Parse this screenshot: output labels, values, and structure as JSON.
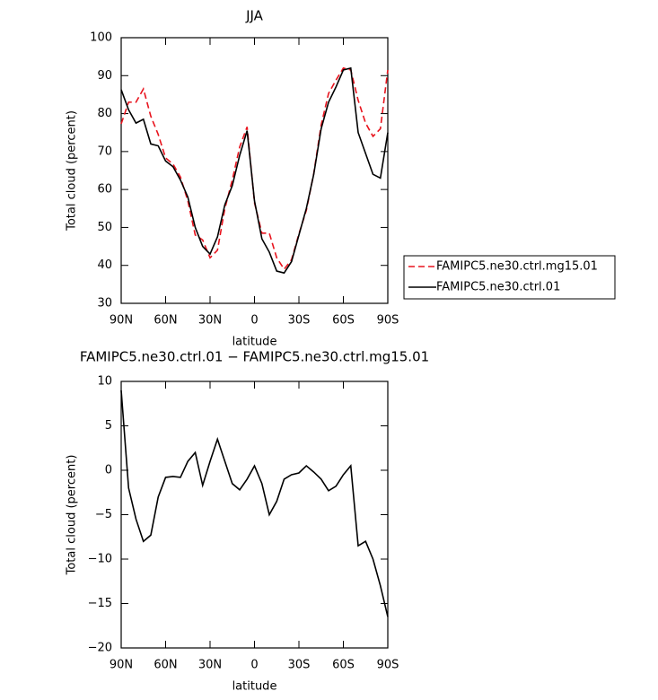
{
  "chart_data": [
    {
      "type": "line",
      "title": "JJA",
      "xlabel": "latitude",
      "ylabel": "Total cloud (percent)",
      "x": [
        90,
        85,
        80,
        75,
        70,
        65,
        60,
        55,
        50,
        45,
        40,
        35,
        30,
        25,
        20,
        15,
        10,
        5,
        0,
        -5,
        -10,
        -15,
        -20,
        -25,
        -30,
        -35,
        -40,
        -45,
        -50,
        -55,
        -60,
        -65,
        -70,
        -75,
        -80,
        -85,
        -90
      ],
      "series": [
        {
          "name": "FAMIPC5.ne30.ctrl.mg15.01",
          "color": "#e8141e",
          "line_style": "dashed",
          "values": [
            77.3,
            83,
            83,
            86.5,
            79.3,
            74.5,
            68.3,
            66.7,
            63.3,
            57,
            48,
            46.7,
            42,
            44,
            55,
            62.5,
            71.2,
            76.5,
            56.5,
            48.5,
            48.5,
            42,
            39,
            41.5,
            48.3,
            54.5,
            64.2,
            77,
            85.3,
            88.8,
            92,
            91.5,
            83.5,
            77.5,
            74,
            76,
            91.5
          ]
        },
        {
          "name": "FAMIPC5.ne30.ctrl.01",
          "color": "#000000",
          "line_style": "solid",
          "values": [
            86.3,
            81,
            77.5,
            78.5,
            72,
            71.5,
            67.5,
            66,
            62.5,
            58,
            50,
            45,
            43,
            47.5,
            56,
            61,
            69,
            75.5,
            57,
            47,
            43.5,
            38.5,
            38,
            41,
            48,
            55,
            64,
            76,
            83,
            87,
            91.5,
            92,
            75,
            69.5,
            64,
            63,
            75
          ]
        }
      ],
      "xlim": [
        90,
        -90
      ],
      "xticks": [
        {
          "value": 90,
          "label": "90N"
        },
        {
          "value": 60,
          "label": "60N"
        },
        {
          "value": 30,
          "label": "30N"
        },
        0,
        {
          "value": -30,
          "label": "30S"
        },
        {
          "value": -60,
          "label": "60S"
        },
        {
          "value": -90,
          "label": "90S"
        }
      ],
      "ylim": [
        30,
        100
      ],
      "yticks": [
        30,
        40,
        50,
        60,
        70,
        80,
        90,
        100
      ],
      "legend": "outside-right"
    },
    {
      "type": "line",
      "title": "FAMIPC5.ne30.ctrl.01 − FAMIPC5.ne30.ctrl.mg15.01",
      "xlabel": "latitude",
      "ylabel": "Total cloud (percent)",
      "x": [
        90,
        85,
        80,
        75,
        70,
        65,
        60,
        55,
        50,
        45,
        40,
        35,
        30,
        25,
        20,
        15,
        10,
        5,
        0,
        -5,
        -10,
        -15,
        -20,
        -25,
        -30,
        -35,
        -40,
        -45,
        -50,
        -55,
        -60,
        -65,
        -70,
        -75,
        -80,
        -85,
        -90
      ],
      "series": [
        {
          "color": "#000000",
          "line_style": "solid",
          "values": [
            9,
            -2,
            -5.5,
            -8,
            -7.3,
            -3,
            -0.8,
            -0.7,
            -0.8,
            1,
            2,
            -1.7,
            1,
            3.5,
            1,
            -1.5,
            -2.2,
            -1,
            0.5,
            -1.5,
            -5,
            -3.5,
            -1,
            -0.5,
            -0.3,
            0.5,
            -0.2,
            -1,
            -2.3,
            -1.8,
            -0.5,
            0.5,
            -8.5,
            -8,
            -10,
            -13,
            -16.5
          ]
        }
      ],
      "xlim": [
        90,
        -90
      ],
      "xticks": [
        {
          "value": 90,
          "label": "90N"
        },
        {
          "value": 60,
          "label": "60N"
        },
        {
          "value": 30,
          "label": "30N"
        },
        0,
        {
          "value": -30,
          "label": "30S"
        },
        {
          "value": -60,
          "label": "60S"
        },
        {
          "value": -90,
          "label": "90S"
        }
      ],
      "ylim": [
        -20,
        10
      ],
      "yticks": [
        {
          "value": -20,
          "label": "−20"
        },
        {
          "value": -15,
          "label": "−15"
        },
        {
          "value": -10,
          "label": "−10"
        },
        {
          "value": -5,
          "label": "−5"
        },
        0,
        5,
        10
      ]
    }
  ]
}
